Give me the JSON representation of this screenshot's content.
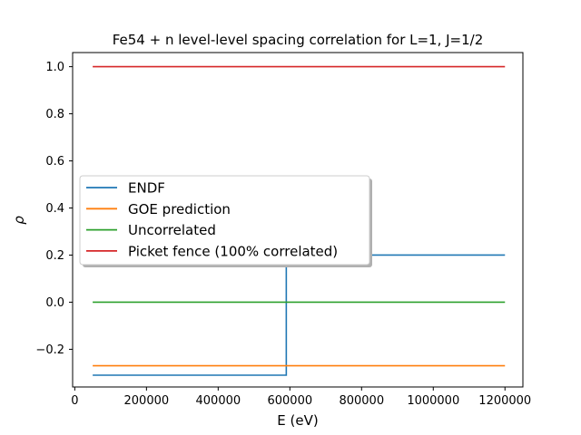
{
  "chart_data": {
    "type": "line",
    "title": "Fe54 + n  level-level spacing correlation for L=1, J=1/2",
    "xlabel": "E (eV)",
    "ylabel": "ρ",
    "xlim": [
      -6000,
      1250000
    ],
    "ylim": [
      -0.36,
      1.06
    ],
    "x_ticks": [
      0,
      200000,
      400000,
      600000,
      800000,
      1000000,
      1200000
    ],
    "x_tick_labels": [
      "0",
      "200000",
      "400000",
      "600000",
      "800000",
      "1000000",
      "1200000"
    ],
    "y_ticks": [
      -0.2,
      0.0,
      0.2,
      0.4,
      0.6,
      0.8,
      1.0
    ],
    "y_tick_labels": [
      "−0.2",
      "0.0",
      "0.2",
      "0.4",
      "0.6",
      "0.8",
      "1.0"
    ],
    "grid": false,
    "legend_position": "center-left",
    "series": [
      {
        "name": "ENDF",
        "color": "#1f77b4",
        "step": true,
        "x": [
          50000,
          590000,
          590000,
          1200000
        ],
        "y": [
          -0.31,
          -0.31,
          0.2,
          0.2
        ]
      },
      {
        "name": "GOE prediction",
        "color": "#ff7f0e",
        "x": [
          50000,
          1200000
        ],
        "y": [
          -0.27,
          -0.27
        ]
      },
      {
        "name": "Uncorrelated",
        "color": "#2ca02c",
        "x": [
          50000,
          1200000
        ],
        "y": [
          0.0,
          0.0
        ]
      },
      {
        "name": "Picket fence (100% correlated)",
        "color": "#d62728",
        "x": [
          50000,
          1200000
        ],
        "y": [
          1.0,
          1.0
        ]
      }
    ]
  }
}
